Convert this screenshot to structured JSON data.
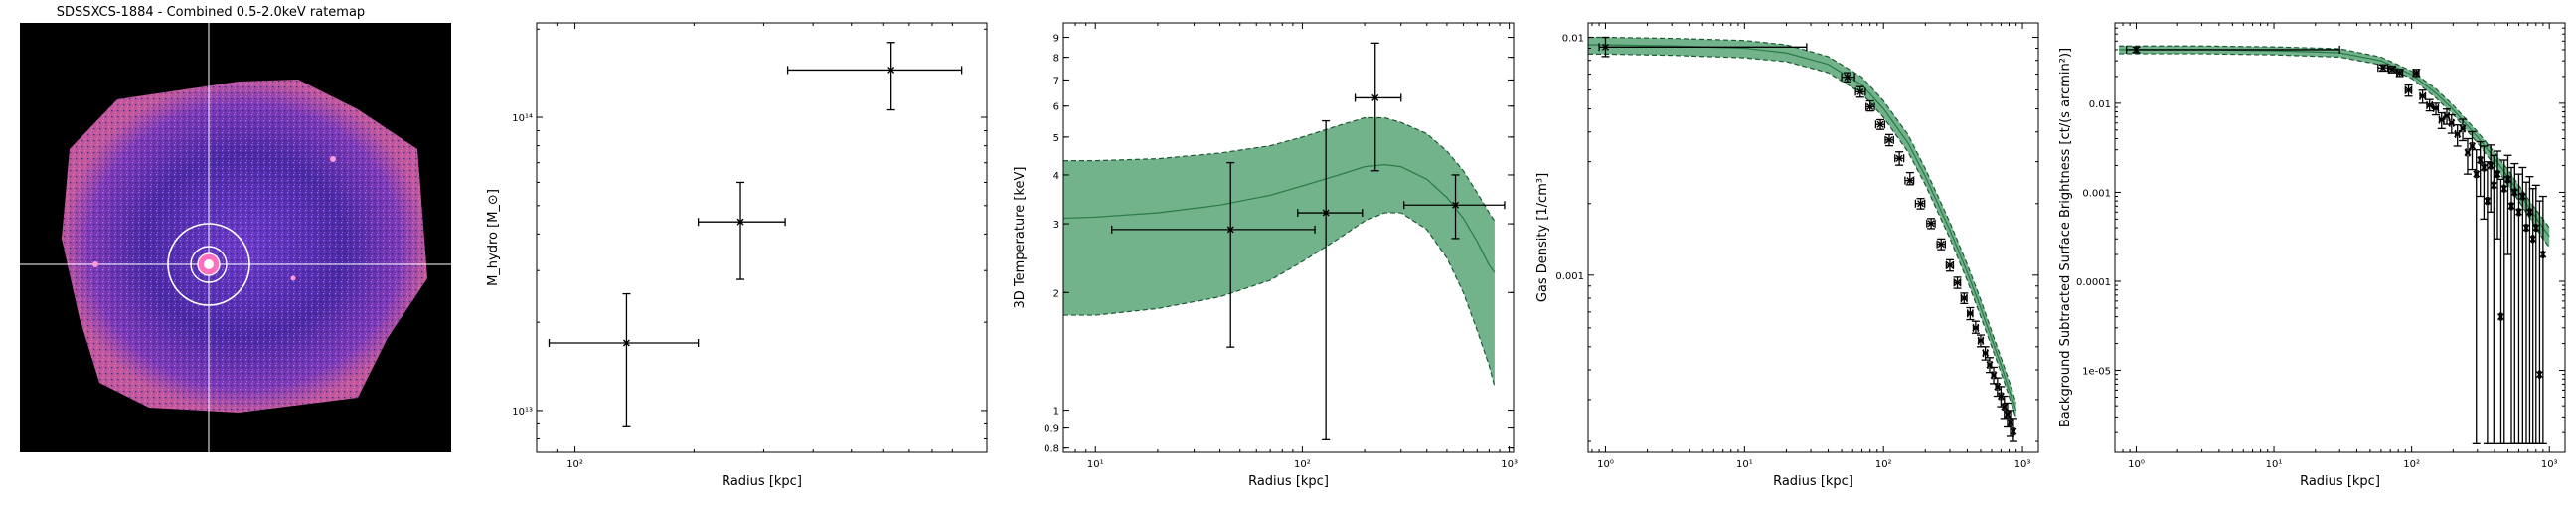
{
  "panels": [
    {
      "type": "image",
      "title": "SDSSXCS-1884 - Combined 0.5-2.0keV ratemap"
    },
    {
      "type": "scatter",
      "xlabel": "Radius [kpc]",
      "ylabel": "M_hydro [M_⊙]",
      "xscale": "log",
      "yscale": "log",
      "xlim": [
        80,
        1100
      ],
      "ylim": [
        7200000000000.0,
        210000000000000.0
      ],
      "xticks": [
        {
          "v": 100,
          "label": "10²"
        }
      ],
      "yticks": [
        {
          "v": 10000000000000.0,
          "label": "10¹³"
        },
        {
          "v": 100000000000000.0,
          "label": "10¹⁴"
        }
      ],
      "points": [
        {
          "x": 135,
          "xlo": 86,
          "xhi": 205,
          "y": 17000000000000.0,
          "ylo": 8800000000000.0,
          "yhi": 25000000000000.0
        },
        {
          "x": 262,
          "xlo": 205,
          "xhi": 340,
          "y": 44000000000000.0,
          "ylo": 28000000000000.0,
          "yhi": 60000000000000.0
        },
        {
          "x": 630,
          "xlo": 345,
          "xhi": 950,
          "y": 145000000000000.0,
          "ylo": 106000000000000.0,
          "yhi": 180000000000000.0
        }
      ]
    },
    {
      "type": "line",
      "xlabel": "Radius [kpc]",
      "ylabel": "3D Temperature [keV]",
      "xscale": "log",
      "yscale": "log",
      "xlim": [
        7,
        1050
      ],
      "ylim": [
        0.78,
        9.8
      ],
      "xticks": [
        {
          "v": 10,
          "label": "10¹"
        },
        {
          "v": 100,
          "label": "10²"
        },
        {
          "v": 1000,
          "label": "10³"
        }
      ],
      "yticks": [
        {
          "v": 0.8,
          "label": "0.8"
        },
        {
          "v": 0.9,
          "label": "0.9"
        },
        {
          "v": 1,
          "label": "1"
        },
        {
          "v": 2,
          "label": "2"
        },
        {
          "v": 3,
          "label": "3"
        },
        {
          "v": 4,
          "label": "4"
        },
        {
          "v": 5,
          "label": "5"
        },
        {
          "v": 6,
          "label": "6"
        },
        {
          "v": 7,
          "label": "7"
        },
        {
          "v": 8,
          "label": "8"
        },
        {
          "v": 9,
          "label": "9"
        }
      ],
      "band": {
        "x": [
          7,
          10,
          20,
          40,
          70,
          100,
          150,
          200,
          250,
          300,
          400,
          500,
          600,
          700,
          800,
          850
        ],
        "mid": [
          3.1,
          3.12,
          3.2,
          3.35,
          3.55,
          3.75,
          4.0,
          4.2,
          4.25,
          4.2,
          3.9,
          3.5,
          3.1,
          2.7,
          2.35,
          2.25
        ],
        "lo": [
          1.75,
          1.75,
          1.82,
          1.95,
          2.15,
          2.4,
          2.75,
          3.05,
          3.2,
          3.2,
          2.9,
          2.45,
          2.0,
          1.6,
          1.3,
          1.15
        ],
        "hi": [
          4.35,
          4.35,
          4.4,
          4.55,
          4.75,
          5.0,
          5.35,
          5.6,
          5.6,
          5.45,
          5.1,
          4.6,
          4.1,
          3.6,
          3.2,
          3.05
        ]
      },
      "points": [
        {
          "x": 45,
          "xlo": 12,
          "xhi": 115,
          "y": 2.9,
          "ylo": 1.45,
          "yhi": 4.3
        },
        {
          "x": 130,
          "xlo": 95,
          "xhi": 195,
          "y": 3.2,
          "ylo": 0.84,
          "yhi": 5.5
        },
        {
          "x": 225,
          "xlo": 180,
          "xhi": 300,
          "y": 6.3,
          "ylo": 4.1,
          "yhi": 8.7
        },
        {
          "x": 550,
          "xlo": 310,
          "xhi": 950,
          "y": 3.35,
          "ylo": 2.75,
          "yhi": 4.0
        }
      ]
    },
    {
      "type": "line",
      "xlabel": "Radius [kpc]",
      "ylabel": "Gas Density [1/cm³]",
      "xscale": "log",
      "yscale": "log",
      "xlim": [
        0.75,
        1300
      ],
      "ylim": [
        0.00018,
        0.0115
      ],
      "xticks": [
        {
          "v": 1,
          "label": "10⁰"
        },
        {
          "v": 10,
          "label": "10¹"
        },
        {
          "v": 100,
          "label": "10²"
        },
        {
          "v": 1000,
          "label": "10³"
        }
      ],
      "yticks": [
        {
          "v": 0.001,
          "label": "0.001"
        },
        {
          "v": 0.01,
          "label": "0.01"
        }
      ],
      "band": {
        "x": [
          0.75,
          1,
          3,
          10,
          20,
          40,
          70,
          100,
          150,
          200,
          300,
          400,
          500,
          600,
          700,
          800,
          900
        ],
        "mid": [
          0.0093,
          0.0093,
          0.0092,
          0.009,
          0.0086,
          0.0077,
          0.0063,
          0.005,
          0.0036,
          0.0026,
          0.00155,
          0.00103,
          0.00073,
          0.00054,
          0.00042,
          0.00033,
          0.00027
        ],
        "lo": [
          0.0085,
          0.0085,
          0.0084,
          0.0082,
          0.0079,
          0.0071,
          0.0058,
          0.0046,
          0.0033,
          0.0024,
          0.00143,
          0.00095,
          0.00067,
          0.0005,
          0.00039,
          0.00031,
          0.00025
        ],
        "hi": [
          0.01,
          0.01,
          0.0099,
          0.0097,
          0.0093,
          0.0083,
          0.0068,
          0.0054,
          0.0039,
          0.0028,
          0.00167,
          0.00111,
          0.00079,
          0.00058,
          0.00045,
          0.00036,
          0.00029
        ]
      },
      "points": [
        {
          "x": 1,
          "xlo": 0.9,
          "xhi": 28,
          "y": 0.0091,
          "ylo": 0.0083,
          "yhi": 0.01
        },
        {
          "x": 55,
          "xlo": 50,
          "xhi": 62,
          "y": 0.0068,
          "ylo": 0.0065,
          "yhi": 0.0071
        },
        {
          "x": 68,
          "xlo": 63,
          "xhi": 74,
          "y": 0.0059,
          "ylo": 0.0056,
          "yhi": 0.0062
        },
        {
          "x": 80,
          "xlo": 75,
          "xhi": 86,
          "y": 0.0051,
          "ylo": 0.0049,
          "yhi": 0.0054
        },
        {
          "x": 95,
          "xlo": 88,
          "xhi": 102,
          "y": 0.0043,
          "ylo": 0.0041,
          "yhi": 0.0045
        },
        {
          "x": 110,
          "xlo": 103,
          "xhi": 118,
          "y": 0.0037,
          "ylo": 0.0035,
          "yhi": 0.0039
        },
        {
          "x": 130,
          "xlo": 121,
          "xhi": 140,
          "y": 0.0031,
          "ylo": 0.0029,
          "yhi": 0.0033
        },
        {
          "x": 155,
          "xlo": 143,
          "xhi": 165,
          "y": 0.0025,
          "ylo": 0.0024,
          "yhi": 0.0027
        },
        {
          "x": 185,
          "xlo": 170,
          "xhi": 198,
          "y": 0.002,
          "ylo": 0.0019,
          "yhi": 0.0021
        },
        {
          "x": 220,
          "xlo": 205,
          "xhi": 235,
          "y": 0.00165,
          "ylo": 0.00157,
          "yhi": 0.00173
        },
        {
          "x": 260,
          "xlo": 243,
          "xhi": 278,
          "y": 0.00135,
          "ylo": 0.00128,
          "yhi": 0.00142
        },
        {
          "x": 300,
          "xlo": 283,
          "xhi": 318,
          "y": 0.0011,
          "ylo": 0.00104,
          "yhi": 0.00116
        },
        {
          "x": 340,
          "xlo": 322,
          "xhi": 358,
          "y": 0.00093,
          "ylo": 0.00088,
          "yhi": 0.00098
        },
        {
          "x": 380,
          "xlo": 362,
          "xhi": 398,
          "y": 0.0008,
          "ylo": 0.00076,
          "yhi": 0.00084
        },
        {
          "x": 420,
          "xlo": 402,
          "xhi": 438,
          "y": 0.00069,
          "ylo": 0.00065,
          "yhi": 0.00073
        },
        {
          "x": 460,
          "xlo": 442,
          "xhi": 478,
          "y": 0.0006,
          "ylo": 0.00057,
          "yhi": 0.00064
        },
        {
          "x": 500,
          "xlo": 482,
          "xhi": 518,
          "y": 0.00053,
          "ylo": 0.0005,
          "yhi": 0.00056
        },
        {
          "x": 540,
          "xlo": 522,
          "xhi": 558,
          "y": 0.00047,
          "ylo": 0.00044,
          "yhi": 0.0005
        },
        {
          "x": 580,
          "xlo": 562,
          "xhi": 598,
          "y": 0.00042,
          "ylo": 0.00039,
          "yhi": 0.00045
        },
        {
          "x": 620,
          "xlo": 602,
          "xhi": 638,
          "y": 0.00038,
          "ylo": 0.00035,
          "yhi": 0.00041
        },
        {
          "x": 660,
          "xlo": 642,
          "xhi": 678,
          "y": 0.00034,
          "ylo": 0.00031,
          "yhi": 0.00037
        },
        {
          "x": 700,
          "xlo": 682,
          "xhi": 718,
          "y": 0.00031,
          "ylo": 0.00028,
          "yhi": 0.00034
        },
        {
          "x": 740,
          "xlo": 722,
          "xhi": 758,
          "y": 0.00028,
          "ylo": 0.00025,
          "yhi": 0.00031
        },
        {
          "x": 780,
          "xlo": 762,
          "xhi": 798,
          "y": 0.00026,
          "ylo": 0.00023,
          "yhi": 0.00029
        },
        {
          "x": 820,
          "xlo": 802,
          "xhi": 838,
          "y": 0.00024,
          "ylo": 0.00021,
          "yhi": 0.00027
        },
        {
          "x": 860,
          "xlo": 842,
          "xhi": 878,
          "y": 0.00022,
          "ylo": 0.0002,
          "yhi": 0.00025
        }
      ]
    },
    {
      "type": "line",
      "xlabel": "Radius [kpc]",
      "ylabel": "Background Subtracted Surface Brightness [ct/(s arcmin²)]",
      "xscale": "log",
      "yscale": "log",
      "xlim": [
        0.7,
        1300
      ],
      "ylim": [
        1.2e-06,
        0.08
      ],
      "xticks": [
        {
          "v": 1,
          "label": "10⁰"
        },
        {
          "v": 10,
          "label": "10¹"
        },
        {
          "v": 100,
          "label": "10²"
        },
        {
          "v": 1000,
          "label": "10³"
        }
      ],
      "yticks": [
        {
          "v": 1e-05,
          "label": "1e-05"
        },
        {
          "v": 0.0001,
          "label": "0.0001"
        },
        {
          "v": 0.001,
          "label": "0.001"
        },
        {
          "v": 0.01,
          "label": "0.01"
        }
      ],
      "band": {
        "x": [
          0.75,
          1,
          3,
          10,
          30,
          60,
          100,
          150,
          200,
          300,
          400,
          500,
          600,
          700,
          800,
          900,
          1000
        ],
        "mid": [
          0.04,
          0.04,
          0.04,
          0.039,
          0.037,
          0.03,
          0.021,
          0.013,
          0.0085,
          0.0042,
          0.0024,
          0.0015,
          0.001,
          0.0007,
          0.00052,
          0.0004,
          0.00032
        ],
        "lo": [
          0.036,
          0.036,
          0.036,
          0.035,
          0.033,
          0.027,
          0.019,
          0.0115,
          0.0075,
          0.0036,
          0.002,
          0.0012,
          0.0008,
          0.00055,
          0.0004,
          0.0003,
          0.00024
        ],
        "hi": [
          0.044,
          0.044,
          0.044,
          0.043,
          0.041,
          0.033,
          0.023,
          0.0145,
          0.0095,
          0.0048,
          0.0028,
          0.0018,
          0.0012,
          0.00085,
          0.00064,
          0.0005,
          0.0004
        ]
      },
      "points": [
        {
          "x": 1,
          "xlo": 0.85,
          "xhi": 30,
          "y": 0.04,
          "ylo": 0.037,
          "yhi": 0.043
        },
        {
          "x": 62,
          "xlo": 57,
          "xhi": 67,
          "y": 0.025,
          "ylo": 0.023,
          "yhi": 0.027
        },
        {
          "x": 72,
          "xlo": 68,
          "xhi": 76,
          "y": 0.024,
          "ylo": 0.022,
          "yhi": 0.026
        },
        {
          "x": 82,
          "xlo": 78,
          "xhi": 86,
          "y": 0.022,
          "ylo": 0.02,
          "yhi": 0.024
        },
        {
          "x": 95,
          "xlo": 90,
          "xhi": 100,
          "y": 0.014,
          "ylo": 0.012,
          "yhi": 0.016
        },
        {
          "x": 108,
          "xlo": 103,
          "xhi": 113,
          "y": 0.022,
          "ylo": 0.02,
          "yhi": 0.024
        },
        {
          "x": 120,
          "xlo": 115,
          "xhi": 126,
          "y": 0.012,
          "ylo": 0.01,
          "yhi": 0.014
        },
        {
          "x": 135,
          "xlo": 129,
          "xhi": 141,
          "y": 0.0095,
          "ylo": 0.0082,
          "yhi": 0.011
        },
        {
          "x": 150,
          "xlo": 144,
          "xhi": 156,
          "y": 0.0088,
          "ylo": 0.0074,
          "yhi": 0.01
        },
        {
          "x": 165,
          "xlo": 159,
          "xhi": 171,
          "y": 0.0065,
          "ylo": 0.0052,
          "yhi": 0.0078
        },
        {
          "x": 180,
          "xlo": 174,
          "xhi": 186,
          "y": 0.0072,
          "ylo": 0.0058,
          "yhi": 0.0086
        },
        {
          "x": 195,
          "xlo": 189,
          "xhi": 201,
          "y": 0.006,
          "ylo": 0.0046,
          "yhi": 0.0074
        },
        {
          "x": 215,
          "xlo": 208,
          "xhi": 222,
          "y": 0.0045,
          "ylo": 0.0033,
          "yhi": 0.0057
        },
        {
          "x": 235,
          "xlo": 228,
          "xhi": 242,
          "y": 0.0052,
          "ylo": 0.0038,
          "yhi": 0.0066
        },
        {
          "x": 255,
          "xlo": 248,
          "xhi": 262,
          "y": 0.0028,
          "ylo": 0.0016,
          "yhi": 0.004
        },
        {
          "x": 275,
          "xlo": 268,
          "xhi": 282,
          "y": 0.0033,
          "ylo": 0.0018,
          "yhi": 0.0048
        },
        {
          "x": 295,
          "xlo": 288,
          "xhi": 302,
          "y": 0.0016,
          "ylo": 1.5e-06,
          "yhi": 0.003
        },
        {
          "x": 315,
          "xlo": 308,
          "xhi": 322,
          "y": 0.0023,
          "ylo": 0.0009,
          "yhi": 0.0037
        },
        {
          "x": 335,
          "xlo": 328,
          "xhi": 342,
          "y": 0.0019,
          "ylo": 0.0005,
          "yhi": 0.0033
        },
        {
          "x": 355,
          "xlo": 348,
          "xhi": 362,
          "y": 0.0008,
          "ylo": 1.5e-06,
          "yhi": 0.0022
        },
        {
          "x": 375,
          "xlo": 368,
          "xhi": 382,
          "y": 0.002,
          "ylo": 0.0006,
          "yhi": 0.0034
        },
        {
          "x": 395,
          "xlo": 388,
          "xhi": 402,
          "y": 0.0012,
          "ylo": 1.5e-06,
          "yhi": 0.0026
        },
        {
          "x": 420,
          "xlo": 412,
          "xhi": 428,
          "y": 0.0016,
          "ylo": 0.0003,
          "yhi": 0.0029
        },
        {
          "x": 445,
          "xlo": 437,
          "xhi": 453,
          "y": 4e-05,
          "ylo": 1.5e-06,
          "yhi": 0.0014
        },
        {
          "x": 470,
          "xlo": 462,
          "xhi": 478,
          "y": 0.0011,
          "ylo": 1.5e-06,
          "yhi": 0.0023
        },
        {
          "x": 500,
          "xlo": 490,
          "xhi": 510,
          "y": 0.0014,
          "ylo": 0.0002,
          "yhi": 0.0026
        },
        {
          "x": 530,
          "xlo": 520,
          "xhi": 540,
          "y": 0.0007,
          "ylo": 1.5e-06,
          "yhi": 0.0019
        },
        {
          "x": 560,
          "xlo": 550,
          "xhi": 570,
          "y": 0.001,
          "ylo": 1.5e-06,
          "yhi": 0.0021
        },
        {
          "x": 600,
          "xlo": 588,
          "xhi": 612,
          "y": 0.0006,
          "ylo": 1.5e-06,
          "yhi": 0.0016
        },
        {
          "x": 640,
          "xlo": 628,
          "xhi": 652,
          "y": 0.0009,
          "ylo": 1.5e-06,
          "yhi": 0.0019
        },
        {
          "x": 680,
          "xlo": 668,
          "xhi": 692,
          "y": 0.0004,
          "ylo": 1.5e-06,
          "yhi": 0.0013
        },
        {
          "x": 720,
          "xlo": 708,
          "xhi": 732,
          "y": 0.0006,
          "ylo": 1.5e-06,
          "yhi": 0.0015
        },
        {
          "x": 760,
          "xlo": 748,
          "xhi": 772,
          "y": 0.0003,
          "ylo": 1.5e-06,
          "yhi": 0.0011
        },
        {
          "x": 800,
          "xlo": 788,
          "xhi": 812,
          "y": 0.0004,
          "ylo": 1.5e-06,
          "yhi": 0.0012
        },
        {
          "x": 850,
          "xlo": 838,
          "xhi": 862,
          "y": 9e-06,
          "ylo": 1.5e-06,
          "yhi": 0.0008
        },
        {
          "x": 900,
          "xlo": 888,
          "xhi": 912,
          "y": 0.0002,
          "ylo": 1.5e-06,
          "yhi": 0.0009
        }
      ]
    }
  ],
  "colors": {
    "band_fill": "#5aa678",
    "band_edge": "#1f5a36",
    "model_line": "#2d7d4b",
    "points": "#000000",
    "crosshair": "#ffffff"
  }
}
